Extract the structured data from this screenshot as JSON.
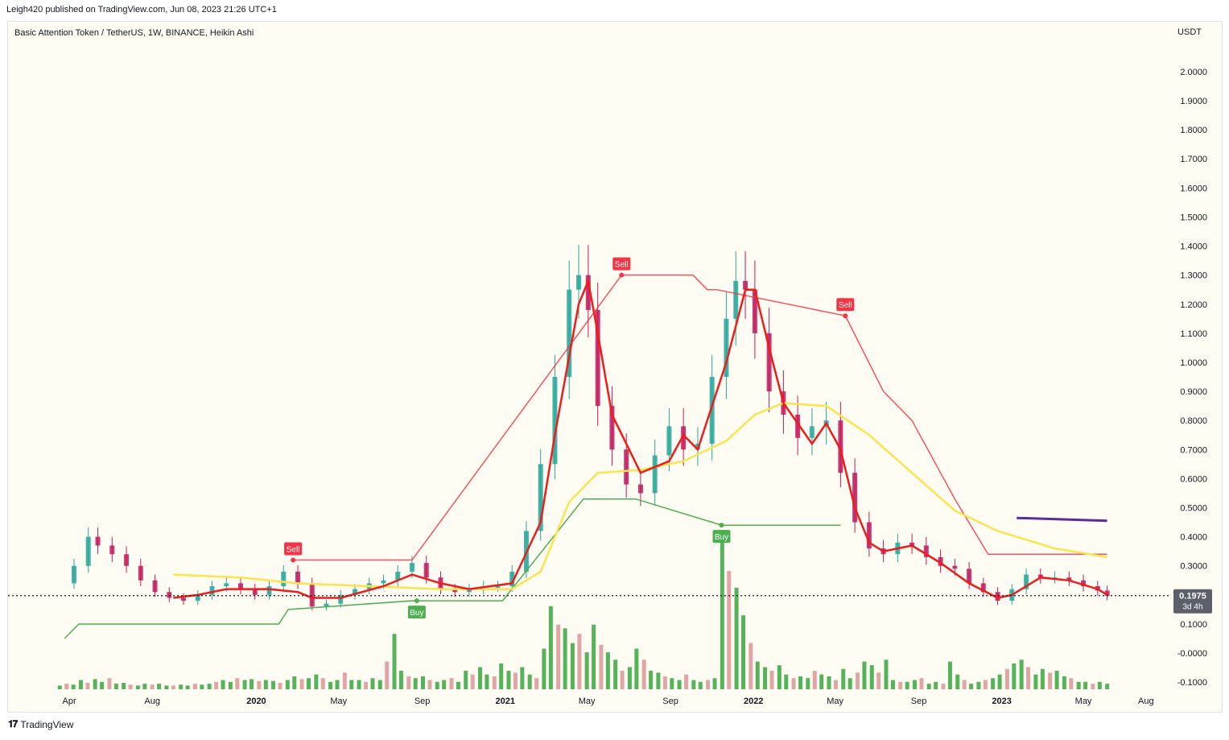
{
  "header": {
    "publisher_line": "Leigh420 published on TradingView.com, Jun 08, 2023 21:26 UTC+1"
  },
  "chart_header": {
    "title": "Basic Attention Token / TetherUS, 1W, BINANCE, Heikin Ashi",
    "currency": "USDT"
  },
  "footer": {
    "brand": "TradingView",
    "logo": "tv-logo-icon"
  },
  "colors": {
    "background": "#fffdf3",
    "bull": "#26a69a",
    "bear_candle": "#c2185b",
    "bull_volume": "#4caf50",
    "bear_volume": "#e0a0a0",
    "sell_tag": "#f23645",
    "buy_tag": "#4caf50",
    "ema_fast": "#ef1c1c",
    "ema_slow": "#fbe44d",
    "purple_line": "#5b2c9e"
  },
  "chart_data": {
    "type": "line",
    "title": "Basic Attention Token / TetherUS, 1W, BINANCE, Heikin Ashi",
    "xlabel": "",
    "ylabel": "USDT",
    "ylim": [
      -0.13,
      2.08
    ],
    "y_ticks": [
      "2.0000",
      "1.9000",
      "1.8000",
      "1.7000",
      "1.6000",
      "1.5000",
      "1.4000",
      "1.3000",
      "1.2000",
      "1.1000",
      "1.0000",
      "0.9000",
      "0.8000",
      "0.7000",
      "0.6000",
      "0.5000",
      "0.4000",
      "0.3000",
      "0.2000",
      "0.1000",
      "-0.0000",
      "-0.1000"
    ],
    "y_tick_values": [
      2.0,
      1.9,
      1.8,
      1.7,
      1.6,
      1.5,
      1.4,
      1.3,
      1.2,
      1.1,
      1.0,
      0.9,
      0.8,
      0.7,
      0.6,
      0.5,
      0.4,
      0.3,
      0.2,
      0.1,
      0.0,
      -0.1
    ],
    "x_ticks": [
      {
        "label": "Apr",
        "date": "2019-04-01"
      },
      {
        "label": "Aug",
        "date": "2019-08-01"
      },
      {
        "label": "2020",
        "date": "2020-01-01"
      },
      {
        "label": "May",
        "date": "2020-05-01"
      },
      {
        "label": "Sep",
        "date": "2020-09-01"
      },
      {
        "label": "2021",
        "date": "2021-01-01"
      },
      {
        "label": "May",
        "date": "2021-05-01"
      },
      {
        "label": "Sep",
        "date": "2021-09-01"
      },
      {
        "label": "2022",
        "date": "2022-01-01"
      },
      {
        "label": "May",
        "date": "2022-05-01"
      },
      {
        "label": "Sep",
        "date": "2022-09-01"
      },
      {
        "label": "2023",
        "date": "2023-01-01"
      },
      {
        "label": "May",
        "date": "2023-05-01"
      },
      {
        "label": "Aug",
        "date": "2023-08-01"
      }
    ],
    "bold_x_ticks": [
      "2020",
      "2021",
      "2022",
      "2023"
    ],
    "grid": false,
    "last_price": {
      "value": 0.1975,
      "label": "0.1975",
      "countdown": "3d 4h"
    },
    "series": [
      {
        "style": "close",
        "points": [
          [
            "2019-03-18",
            0.24
          ],
          [
            "2019-04-08",
            0.3
          ],
          [
            "2019-04-29",
            0.4
          ],
          [
            "2019-05-13",
            0.37
          ],
          [
            "2019-06-03",
            0.34
          ],
          [
            "2019-06-24",
            0.3
          ],
          [
            "2019-07-15",
            0.25
          ],
          [
            "2019-08-05",
            0.21
          ],
          [
            "2019-08-26",
            0.19
          ],
          [
            "2019-09-16",
            0.18
          ],
          [
            "2019-10-07",
            0.2
          ],
          [
            "2019-10-28",
            0.23
          ],
          [
            "2019-11-18",
            0.24
          ],
          [
            "2019-12-09",
            0.22
          ],
          [
            "2019-12-30",
            0.2
          ],
          [
            "2020-01-20",
            0.23
          ],
          [
            "2020-02-10",
            0.28
          ],
          [
            "2020-03-02",
            0.24
          ],
          [
            "2020-03-23",
            0.16
          ],
          [
            "2020-04-13",
            0.17
          ],
          [
            "2020-05-04",
            0.2
          ],
          [
            "2020-05-25",
            0.22
          ],
          [
            "2020-06-15",
            0.24
          ],
          [
            "2020-07-06",
            0.25
          ],
          [
            "2020-07-27",
            0.28
          ],
          [
            "2020-08-17",
            0.31
          ],
          [
            "2020-09-07",
            0.26
          ],
          [
            "2020-09-28",
            0.22
          ],
          [
            "2020-10-19",
            0.21
          ],
          [
            "2020-11-09",
            0.22
          ],
          [
            "2020-11-30",
            0.23
          ],
          [
            "2020-12-21",
            0.23
          ],
          [
            "2021-01-11",
            0.28
          ],
          [
            "2021-02-01",
            0.42
          ],
          [
            "2021-02-22",
            0.65
          ],
          [
            "2021-03-15",
            0.95
          ],
          [
            "2021-04-05",
            1.25
          ],
          [
            "2021-04-19",
            1.3
          ],
          [
            "2021-05-03",
            1.18
          ],
          [
            "2021-05-17",
            0.85
          ],
          [
            "2021-06-07",
            0.7
          ],
          [
            "2021-06-28",
            0.58
          ],
          [
            "2021-07-19",
            0.55
          ],
          [
            "2021-08-09",
            0.68
          ],
          [
            "2021-08-30",
            0.78
          ],
          [
            "2021-09-20",
            0.7
          ],
          [
            "2021-10-11",
            0.72
          ],
          [
            "2021-11-01",
            0.95
          ],
          [
            "2021-11-22",
            1.15
          ],
          [
            "2021-12-06",
            1.28
          ],
          [
            "2021-12-20",
            1.25
          ],
          [
            "2022-01-03",
            1.1
          ],
          [
            "2022-01-24",
            0.9
          ],
          [
            "2022-02-14",
            0.82
          ],
          [
            "2022-03-07",
            0.74
          ],
          [
            "2022-03-28",
            0.78
          ],
          [
            "2022-04-18",
            0.8
          ],
          [
            "2022-05-09",
            0.62
          ],
          [
            "2022-05-30",
            0.45
          ],
          [
            "2022-06-20",
            0.36
          ],
          [
            "2022-07-11",
            0.34
          ],
          [
            "2022-08-01",
            0.38
          ],
          [
            "2022-08-22",
            0.37
          ],
          [
            "2022-09-12",
            0.33
          ],
          [
            "2022-10-03",
            0.3
          ],
          [
            "2022-10-24",
            0.29
          ],
          [
            "2022-11-14",
            0.24
          ],
          [
            "2022-12-05",
            0.21
          ],
          [
            "2022-12-26",
            0.18
          ],
          [
            "2023-01-16",
            0.22
          ],
          [
            "2023-02-06",
            0.27
          ],
          [
            "2023-02-27",
            0.26
          ],
          [
            "2023-03-20",
            0.26
          ],
          [
            "2023-04-10",
            0.25
          ],
          [
            "2023-05-01",
            0.23
          ],
          [
            "2023-05-22",
            0.215
          ],
          [
            "2023-06-05",
            0.1975
          ]
        ]
      },
      {
        "style": "ema_fast",
        "points": [
          [
            "2019-09-01",
            0.19
          ],
          [
            "2019-10-07",
            0.2
          ],
          [
            "2019-11-18",
            0.22
          ],
          [
            "2020-01-20",
            0.22
          ],
          [
            "2020-03-02",
            0.21
          ],
          [
            "2020-03-23",
            0.19
          ],
          [
            "2020-05-04",
            0.19
          ],
          [
            "2020-07-06",
            0.23
          ],
          [
            "2020-08-17",
            0.27
          ],
          [
            "2020-09-28",
            0.24
          ],
          [
            "2020-11-09",
            0.22
          ],
          [
            "2021-01-11",
            0.24
          ],
          [
            "2021-02-22",
            0.45
          ],
          [
            "2021-03-15",
            0.75
          ],
          [
            "2021-04-19",
            1.2
          ],
          [
            "2021-05-03",
            1.28
          ],
          [
            "2021-05-17",
            1.1
          ],
          [
            "2021-06-07",
            0.82
          ],
          [
            "2021-07-19",
            0.62
          ],
          [
            "2021-08-30",
            0.66
          ],
          [
            "2021-09-20",
            0.75
          ],
          [
            "2021-10-11",
            0.7
          ],
          [
            "2021-11-22",
            1.0
          ],
          [
            "2021-12-20",
            1.25
          ],
          [
            "2022-01-03",
            1.25
          ],
          [
            "2022-01-24",
            1.05
          ],
          [
            "2022-02-14",
            0.86
          ],
          [
            "2022-03-28",
            0.72
          ],
          [
            "2022-04-18",
            0.79
          ],
          [
            "2022-05-09",
            0.7
          ],
          [
            "2022-05-30",
            0.5
          ],
          [
            "2022-06-20",
            0.38
          ],
          [
            "2022-07-11",
            0.35
          ],
          [
            "2022-08-22",
            0.37
          ],
          [
            "2022-10-03",
            0.31
          ],
          [
            "2022-11-14",
            0.24
          ],
          [
            "2022-12-26",
            0.19
          ],
          [
            "2023-01-16",
            0.2
          ],
          [
            "2023-02-27",
            0.26
          ],
          [
            "2023-04-10",
            0.25
          ],
          [
            "2023-05-22",
            0.22
          ],
          [
            "2023-06-05",
            0.2
          ]
        ]
      },
      {
        "style": "ema_slow",
        "points": [
          [
            "2019-09-01",
            0.27
          ],
          [
            "2019-12-09",
            0.26
          ],
          [
            "2020-03-02",
            0.24
          ],
          [
            "2020-06-15",
            0.23
          ],
          [
            "2020-09-28",
            0.22
          ],
          [
            "2021-01-11",
            0.22
          ],
          [
            "2021-02-22",
            0.28
          ],
          [
            "2021-04-05",
            0.52
          ],
          [
            "2021-05-17",
            0.62
          ],
          [
            "2021-07-19",
            0.63
          ],
          [
            "2021-09-20",
            0.66
          ],
          [
            "2021-11-22",
            0.73
          ],
          [
            "2022-01-03",
            0.82
          ],
          [
            "2022-02-14",
            0.86
          ],
          [
            "2022-04-18",
            0.85
          ],
          [
            "2022-06-20",
            0.75
          ],
          [
            "2022-08-22",
            0.62
          ],
          [
            "2022-10-24",
            0.49
          ],
          [
            "2022-12-26",
            0.42
          ],
          [
            "2023-03-20",
            0.36
          ],
          [
            "2023-06-05",
            0.33
          ]
        ]
      },
      {
        "style": "trailing_stop_sell",
        "points": [
          [
            "2020-02-24",
            0.32
          ],
          [
            "2020-08-17",
            0.32
          ],
          [
            "2021-06-21",
            1.3
          ],
          [
            "2021-10-04",
            1.3
          ],
          [
            "2021-10-25",
            1.25
          ],
          [
            "2021-11-08",
            1.25
          ],
          [
            "2022-05-16",
            1.16
          ],
          [
            "2022-07-11",
            0.9
          ],
          [
            "2022-08-22",
            0.8
          ],
          [
            "2022-10-24",
            0.53
          ],
          [
            "2022-12-12",
            0.34
          ],
          [
            "2023-06-05",
            0.34
          ]
        ]
      },
      {
        "style": "trailing_stop_buy",
        "points": [
          [
            "2019-03-25",
            0.05
          ],
          [
            "2019-04-15",
            0.1
          ],
          [
            "2020-02-03",
            0.1
          ],
          [
            "2020-02-17",
            0.15
          ],
          [
            "2020-08-17",
            0.18
          ],
          [
            "2020-08-24",
            0.18
          ],
          [
            "2020-12-28",
            0.18
          ],
          [
            "2021-04-26",
            0.53
          ],
          [
            "2021-07-12",
            0.53
          ],
          [
            "2021-11-15",
            0.44
          ],
          [
            "2022-05-09",
            0.44
          ]
        ]
      },
      {
        "style": "purple_level",
        "points": [
          [
            "2023-01-23",
            0.465
          ],
          [
            "2023-06-05",
            0.455
          ]
        ]
      }
    ],
    "annotations": [
      {
        "text": "Sell",
        "date": "2020-02-24",
        "price": 0.32
      },
      {
        "text": "Sell",
        "date": "2021-06-21",
        "price": 1.3
      },
      {
        "text": "Sell",
        "date": "2022-05-16",
        "price": 1.16
      },
      {
        "text": "Buy",
        "date": "2020-08-24",
        "price": 0.18
      },
      {
        "text": "Buy",
        "date": "2021-11-15",
        "price": 0.44
      }
    ],
    "volume": [
      0.2,
      0.3,
      0.25,
      0.5,
      0.35,
      0.55,
      0.4,
      0.6,
      0.3,
      0.35,
      0.25,
      0.2,
      0.3,
      0.25,
      0.3,
      0.2,
      0.2,
      0.25,
      0.2,
      0.3,
      0.25,
      0.3,
      0.4,
      0.5,
      0.4,
      0.6,
      0.5,
      0.55,
      0.45,
      0.5,
      0.45,
      0.35,
      0.5,
      0.7,
      0.55,
      0.6,
      0.8,
      0.6,
      0.4,
      0.5,
      0.9,
      0.5,
      0.5,
      0.4,
      0.6,
      0.5,
      1.5,
      3.0,
      1.0,
      0.7,
      0.6,
      0.7,
      0.5,
      0.4,
      0.5,
      0.6,
      0.4,
      1.0,
      0.8,
      1.2,
      0.8,
      0.7,
      1.4,
      1.0,
      0.9,
      1.2,
      0.8,
      0.6,
      2.2,
      4.5,
      3.5,
      3.3,
      2.5,
      3.0,
      2.0,
      3.5,
      2.4,
      2.0,
      1.6,
      1.0,
      1.2,
      2.2,
      1.6,
      1.0,
      0.9,
      0.7,
      0.6,
      0.5,
      0.8,
      0.5,
      0.4,
      0.5,
      0.6,
      8.5,
      6.4,
      5.5,
      4.0,
      2.5,
      1.5,
      1.2,
      1.0,
      1.3,
      0.8,
      0.6,
      0.7,
      0.6,
      1.0,
      0.8,
      0.7,
      0.5,
      1.1,
      0.6,
      0.9,
      1.5,
      1.3,
      0.9,
      1.6,
      0.5,
      0.4,
      0.4,
      0.5,
      0.6,
      0.3,
      0.4,
      0.3,
      1.5,
      0.8,
      0.5,
      0.3,
      0.4,
      0.5,
      0.6,
      0.8,
      1.1,
      1.4,
      1.6,
      1.2,
      0.8,
      1.1,
      0.9,
      1.0,
      0.7,
      0.6,
      0.4,
      0.4,
      0.3,
      0.4,
      0.3
    ]
  }
}
